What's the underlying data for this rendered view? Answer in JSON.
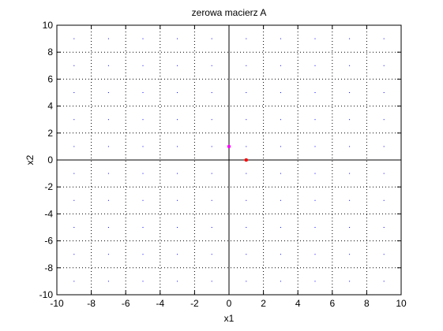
{
  "chart_data": {
    "type": "scatter",
    "title": "zerowa macierz A",
    "xlabel": "x1",
    "ylabel": "x2",
    "xlim": [
      -10,
      10
    ],
    "ylim": [
      -10,
      10
    ],
    "x_ticks": [
      -10,
      -8,
      -6,
      -4,
      -2,
      0,
      2,
      4,
      6,
      8,
      10
    ],
    "y_ticks": [
      -10,
      -8,
      -6,
      -4,
      -2,
      0,
      2,
      4,
      6,
      8,
      10
    ],
    "grid": true,
    "background_dot_grid": {
      "x": [
        -9,
        -7,
        -5,
        -3,
        -1,
        1,
        3,
        5,
        7,
        9
      ],
      "y": [
        -9,
        -7,
        -5,
        -3,
        -1,
        1,
        3,
        5,
        7,
        9
      ],
      "color": "#0000ff"
    },
    "points": [
      {
        "x": 0,
        "y": 1,
        "color": "#ff00ff"
      },
      {
        "x": 1,
        "y": 0,
        "color": "#ff0000"
      }
    ],
    "colors": {
      "axes": "#000000",
      "grid": "#000000",
      "zero_lines": "#000000"
    }
  }
}
